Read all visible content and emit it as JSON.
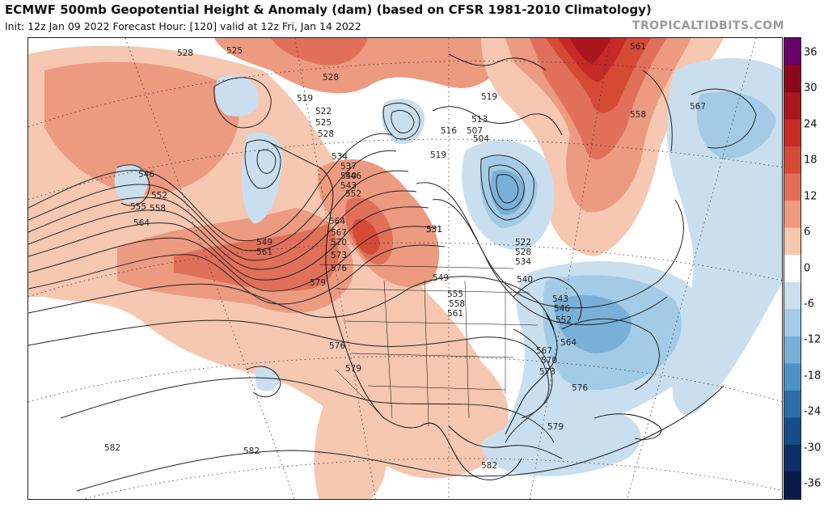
{
  "header": {
    "title": "ECMWF 500mb Geopotential Height & Anomaly (dam) (based on CFSR 1981-2010 Climatology)",
    "subtitle": "Init: 12z Jan 09 2022   Forecast Hour: [120]   valid at 12z Fri, Jan 14 2022",
    "brand": "TROPICALTIDBITS.COM"
  },
  "colorbar": {
    "labels": [
      "36",
      "30",
      "24",
      "18",
      "12",
      "6",
      "0",
      "-6",
      "-12",
      "-18",
      "-24",
      "-30",
      "-36"
    ],
    "colors": [
      "#6a006a",
      "#8b0a1a",
      "#a9161f",
      "#c42a26",
      "#d54a35",
      "#e0705a",
      "#ec9a80",
      "#f6c7b1",
      "#ffffff",
      "#c9dff0",
      "#a3cbe6",
      "#79b0d8",
      "#4d93c6",
      "#2c6ca8",
      "#164c88",
      "#0c2f66",
      "#071a45"
    ]
  },
  "map": {
    "contour_labels": [
      "528",
      "525",
      "528",
      "519",
      "522",
      "525",
      "528",
      "519",
      "513",
      "507",
      "504",
      "516",
      "519",
      "561",
      "558",
      "567",
      "546",
      "552",
      "555",
      "558",
      "564",
      "531",
      "534",
      "537",
      "540",
      "543",
      "546",
      "552",
      "549",
      "561",
      "564",
      "567",
      "570",
      "573",
      "576",
      "579",
      "531",
      "522",
      "528",
      "534",
      "540",
      "543",
      "546",
      "552",
      "549",
      "555",
      "558",
      "561",
      "564",
      "567",
      "570",
      "573",
      "576",
      "576",
      "579",
      "579",
      "582",
      "582",
      "582"
    ]
  }
}
